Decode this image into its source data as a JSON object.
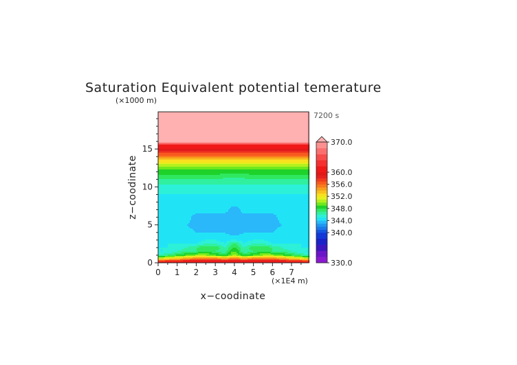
{
  "chart_data": {
    "type": "heatmap",
    "title": "Saturation Equivalent potential temerature",
    "time_label": "7200 s",
    "xlabel": "x−coodinate",
    "ylabel": "z−coodinate",
    "x_unit": "(×1E4 m)",
    "y_unit": "(×1000 m)",
    "xlim": [
      0,
      7.9
    ],
    "ylim": [
      0,
      19.9
    ],
    "x_ticks": [
      "0",
      "1",
      "2",
      "3",
      "4",
      "5",
      "6",
      "7"
    ],
    "y_ticks": [
      "0",
      "5",
      "10",
      "15"
    ],
    "colorbar": {
      "min": 330,
      "max": 370,
      "extend": "max",
      "tick_labels": [
        "370.0",
        "360.0",
        "356.0",
        "352.0",
        "348.0",
        "344.0",
        "340.0",
        "330.0"
      ],
      "levels": [
        {
          "v0": 330,
          "v1": 332,
          "color": "#8a1ad0"
        },
        {
          "v0": 332,
          "v1": 334,
          "color": "#6a16c8"
        },
        {
          "v0": 334,
          "v1": 336,
          "color": "#3c16c0"
        },
        {
          "v0": 336,
          "v1": 338,
          "color": "#1a22c8"
        },
        {
          "v0": 338,
          "v1": 340,
          "color": "#1238d8"
        },
        {
          "v0": 340,
          "v1": 341,
          "color": "#1258e2"
        },
        {
          "v0": 341,
          "v1": 342,
          "color": "#1c78ea"
        },
        {
          "v0": 342,
          "v1": 343,
          "color": "#1e98f2"
        },
        {
          "v0": 343,
          "v1": 344,
          "color": "#2ab8fa"
        },
        {
          "v0": 344,
          "v1": 345,
          "color": "#20e4f6"
        },
        {
          "v0": 345,
          "v1": 346,
          "color": "#2cf0d8"
        },
        {
          "v0": 346,
          "v1": 347,
          "color": "#30f0a0"
        },
        {
          "v0": 347,
          "v1": 348,
          "color": "#30e860"
        },
        {
          "v0": 348,
          "v1": 349,
          "color": "#1ed22a"
        },
        {
          "v0": 349,
          "v1": 350,
          "color": "#6ee81e"
        },
        {
          "v0": 350,
          "v1": 351,
          "color": "#b4f01e"
        },
        {
          "v0": 351,
          "v1": 352,
          "color": "#e6f01e"
        },
        {
          "v0": 352,
          "v1": 353,
          "color": "#f8e01e"
        },
        {
          "v0": 353,
          "v1": 354,
          "color": "#f8c01e"
        },
        {
          "v0": 354,
          "v1": 355,
          "color": "#f8a01e"
        },
        {
          "v0": 355,
          "v1": 356,
          "color": "#f87a1e"
        },
        {
          "v0": 356,
          "v1": 357,
          "color": "#f85a1e"
        },
        {
          "v0": 357,
          "v1": 358,
          "color": "#f03a1e"
        },
        {
          "v0": 358,
          "v1": 359,
          "color": "#e82020"
        },
        {
          "v0": 359,
          "v1": 360,
          "color": "#e01818"
        },
        {
          "v0": 360,
          "v1": 362,
          "color": "#f01818"
        },
        {
          "v0": 362,
          "v1": 364,
          "color": "#f43030"
        },
        {
          "v0": 364,
          "v1": 366,
          "color": "#f84c4c"
        },
        {
          "v0": 366,
          "v1": 368,
          "color": "#fa7070"
        },
        {
          "v0": 368,
          "v1": 370,
          "color": "#fc9090"
        }
      ],
      "extend_color": "#ffb0b0"
    },
    "field": {
      "x": [
        0,
        0.5,
        1,
        1.5,
        2,
        2.5,
        3,
        3.5,
        3.9,
        4.1,
        4.5,
        5,
        5.5,
        6,
        6.5,
        7,
        7.5,
        7.9
      ],
      "z": [
        0,
        0.5,
        1.0,
        1.5,
        2.0,
        2.5,
        3.0,
        4.0,
        5.0,
        6.0,
        7.0,
        8.0,
        9.0,
        10.0,
        10.8,
        11.5,
        12.0,
        12.5,
        13.0,
        13.5,
        14.0,
        14.5,
        15.0,
        15.5,
        16.0,
        18.0,
        19.9
      ],
      "rows": [
        [
          362,
          362,
          362,
          362,
          362,
          362,
          362,
          362,
          362,
          362,
          362,
          362,
          362,
          362,
          362,
          362,
          362,
          362
        ],
        [
          352,
          353,
          354,
          355,
          356,
          356,
          356,
          355,
          356,
          356,
          355,
          356,
          356,
          356,
          355,
          354,
          353,
          352
        ],
        [
          346,
          347,
          348,
          349,
          350,
          350,
          349,
          348,
          350,
          350,
          348,
          349,
          350,
          350,
          349,
          348,
          347,
          346
        ],
        [
          345,
          345,
          346,
          347,
          347,
          348,
          347,
          346,
          349,
          349,
          346,
          347,
          348,
          347,
          347,
          346,
          345,
          345
        ],
        [
          345,
          345,
          345,
          346,
          347,
          348,
          348,
          346,
          348,
          348,
          346,
          348,
          348,
          347,
          346,
          345,
          345,
          345
        ],
        [
          344.5,
          345,
          345,
          345,
          345,
          346,
          346,
          345,
          347,
          347,
          345,
          346,
          346,
          345,
          345,
          345,
          345,
          344.5
        ],
        [
          344.5,
          344.5,
          344.5,
          344.5,
          344.5,
          345,
          345,
          344.5,
          345,
          345,
          344.5,
          345,
          345,
          344.5,
          344.5,
          344.5,
          344.5,
          344.5
        ],
        [
          344.5,
          344.5,
          344.5,
          344.5,
          344,
          344,
          344,
          344,
          343.5,
          343.5,
          344,
          344,
          344,
          344,
          344.5,
          344.5,
          344.5,
          344.5
        ],
        [
          344.5,
          344.5,
          344.5,
          344,
          343.5,
          343.5,
          343.5,
          343.5,
          343,
          343,
          343.5,
          343.5,
          343.5,
          343.5,
          344,
          344.5,
          344.5,
          344.5
        ],
        [
          344.5,
          344.5,
          344.5,
          344.5,
          343.5,
          343.5,
          343.5,
          343.5,
          343.5,
          343.5,
          343.5,
          343.5,
          343.5,
          343.5,
          344.5,
          344.5,
          344.5,
          344.5
        ],
        [
          344.5,
          344.5,
          344.5,
          344.5,
          344.5,
          344.5,
          344.5,
          344.5,
          343.5,
          343.5,
          344.5,
          344.5,
          344.5,
          344.5,
          344.5,
          344.5,
          344.5,
          344.5
        ],
        [
          344.5,
          344.5,
          344.5,
          344.5,
          344.5,
          344.5,
          344.5,
          344.5,
          344.5,
          344.5,
          344.5,
          344.5,
          344.5,
          344.5,
          344.5,
          344.5,
          344.5,
          344.5
        ],
        [
          345,
          345,
          345,
          345,
          345,
          345,
          345,
          345,
          345,
          345,
          345,
          345,
          345,
          345,
          345,
          345,
          345,
          345
        ],
        [
          345.5,
          345.5,
          345.5,
          345.5,
          345.5,
          345.5,
          345.5,
          345.5,
          345.5,
          345.5,
          345.5,
          345.5,
          345.5,
          345.5,
          345.5,
          345.5,
          345.5,
          345.5
        ],
        [
          346.5,
          346.5,
          346.5,
          346.5,
          346.5,
          346.5,
          346.5,
          346.5,
          346.5,
          346.5,
          346.5,
          346.5,
          346.5,
          346.5,
          346.5,
          346.5,
          346.5,
          346.5
        ],
        [
          348,
          348,
          348,
          348,
          348,
          348,
          348,
          347.5,
          347.5,
          347.5,
          347.5,
          348,
          348,
          348,
          348,
          348,
          348,
          348
        ],
        [
          348.5,
          348.5,
          348.5,
          348.5,
          348.5,
          348.5,
          348.5,
          348.5,
          348.3,
          348.3,
          348.5,
          348.5,
          348.5,
          348.5,
          348.5,
          348.5,
          348.5,
          348.5
        ],
        [
          349.5,
          349.5,
          349.5,
          349.5,
          349.5,
          349.5,
          349.5,
          349.5,
          349.5,
          349.5,
          349.5,
          349.5,
          349.5,
          349.5,
          349.5,
          349.5,
          349.5,
          349.5
        ],
        [
          351,
          351,
          351,
          351,
          351,
          351,
          351,
          351,
          351,
          351,
          351,
          351,
          351,
          351,
          351,
          351,
          351,
          351
        ],
        [
          353,
          353,
          353,
          353,
          353,
          353,
          353,
          353,
          353,
          353,
          353,
          353,
          353,
          353,
          353,
          353,
          353,
          353
        ],
        [
          355,
          355,
          355,
          355,
          355,
          355,
          355,
          355,
          355,
          355,
          355,
          355,
          355,
          355,
          355,
          355,
          355,
          355
        ],
        [
          357.5,
          357.5,
          357.5,
          357.5,
          357.5,
          357.5,
          357.5,
          357.5,
          357.5,
          357.5,
          357.5,
          357.5,
          357.5,
          357.5,
          357.5,
          357.5,
          357.5,
          357.5
        ],
        [
          359.5,
          359.5,
          359.5,
          359.5,
          359.5,
          359.5,
          359.5,
          359.5,
          359.5,
          359.5,
          359.5,
          359.5,
          359.5,
          359.5,
          359.5,
          359.5,
          359.5,
          359.5
        ],
        [
          362,
          362,
          362,
          362,
          362,
          362,
          362,
          362,
          362,
          362,
          362,
          362,
          362,
          362,
          362,
          362,
          362,
          362
        ],
        [
          372,
          372,
          372,
          372,
          372,
          372,
          372,
          372,
          372,
          372,
          372,
          372,
          372,
          372,
          372,
          372,
          372,
          372
        ],
        [
          373,
          373,
          373,
          373,
          373,
          373,
          373,
          373,
          373,
          373,
          373,
          373,
          373,
          373,
          373,
          373,
          373,
          373
        ],
        [
          374,
          374,
          374,
          374,
          374,
          374,
          374,
          374,
          374,
          374,
          374,
          374,
          374,
          374,
          374,
          374,
          374,
          374
        ]
      ]
    }
  }
}
